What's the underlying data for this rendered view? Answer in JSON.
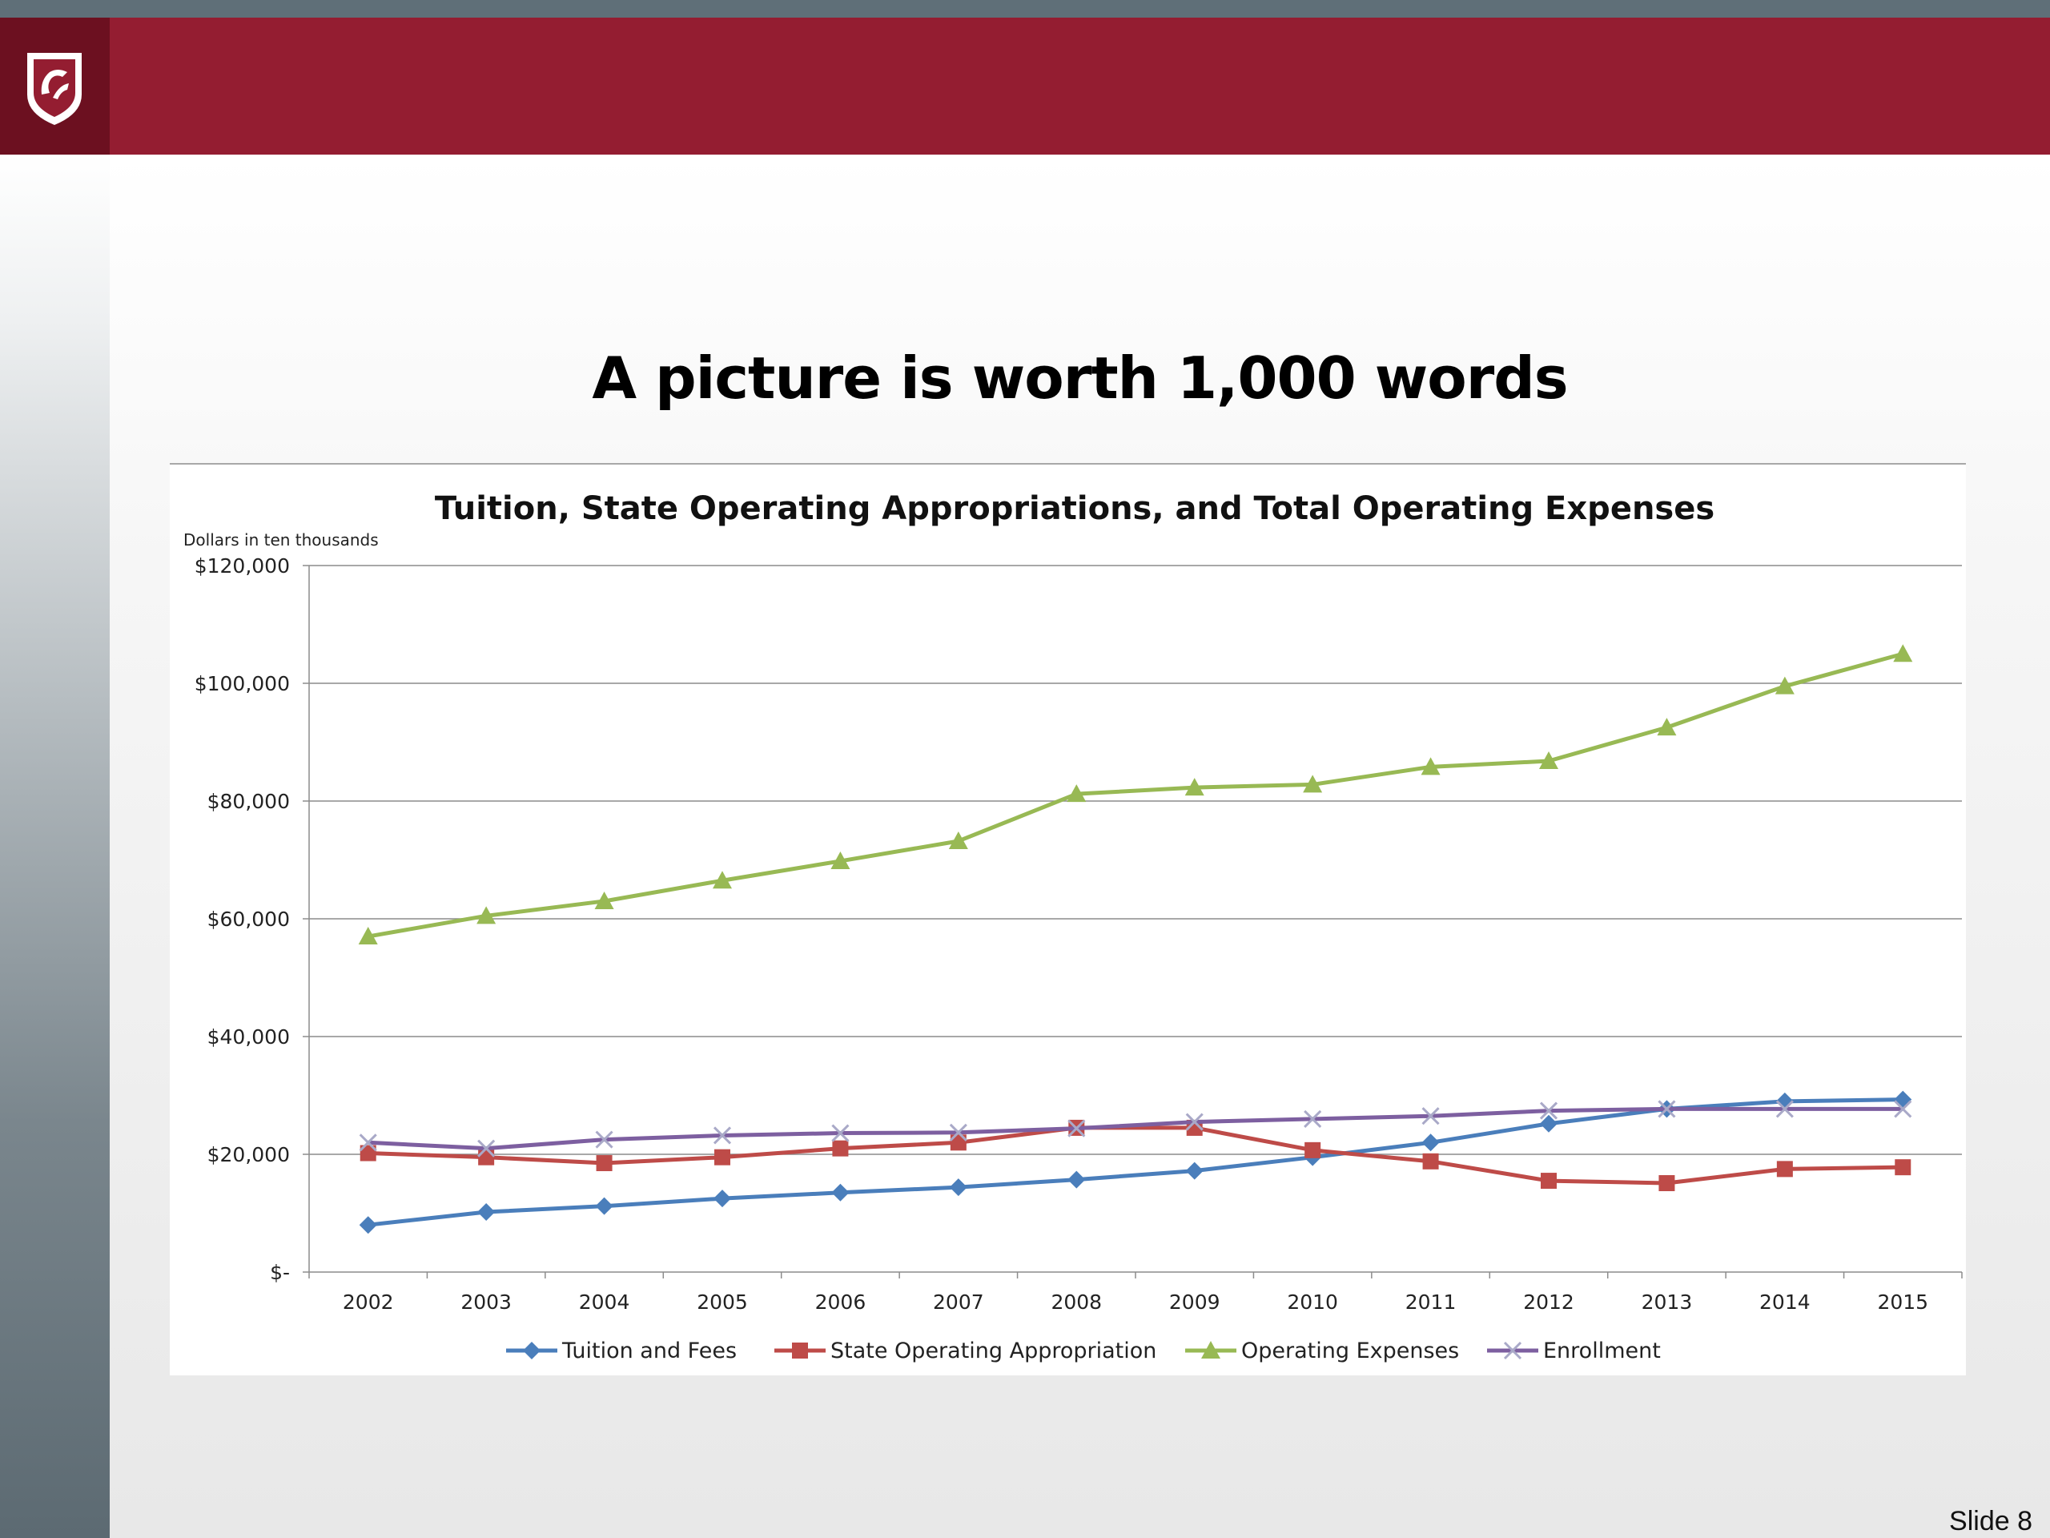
{
  "slide": {
    "title": "A picture is worth 1,000 words",
    "number": "Slide 8",
    "header_color": "#941d31",
    "logo": "wsu-cougar-shield-logo"
  },
  "chart_data": {
    "type": "line",
    "title": "Tuition, State Operating Appropriations, and Total Operating Expenses",
    "units_note": "Dollars in ten thousands",
    "xlabel": "",
    "ylabel": "",
    "categories": [
      "2002",
      "2003",
      "2004",
      "2005",
      "2006",
      "2007",
      "2008",
      "2009",
      "2010",
      "2011",
      "2012",
      "2013",
      "2014",
      "2015"
    ],
    "ylim": [
      0,
      120000
    ],
    "yticks": [
      {
        "value": 0,
        "label": "$-"
      },
      {
        "value": 20000,
        "label": "$20,000"
      },
      {
        "value": 40000,
        "label": "$40,000"
      },
      {
        "value": 60000,
        "label": "$60,000"
      },
      {
        "value": 80000,
        "label": "$80,000"
      },
      {
        "value": 100000,
        "label": "$100,000"
      },
      {
        "value": 120000,
        "label": "$120,000"
      }
    ],
    "grid": true,
    "legend_position": "bottom",
    "series": [
      {
        "name": "Tuition and Fees",
        "color": "#4a7ebb",
        "marker": "diamond",
        "values": [
          8000,
          10200,
          11200,
          12500,
          13500,
          14400,
          15700,
          17200,
          19500,
          22000,
          25200,
          27700,
          29000,
          29300
        ]
      },
      {
        "name": "State Operating Appropriation",
        "color": "#be4b48",
        "marker": "square",
        "values": [
          20200,
          19500,
          18500,
          19500,
          21000,
          22000,
          24500,
          24500,
          20700,
          18800,
          15500,
          15100,
          17500,
          17800
        ]
      },
      {
        "name": "Operating Expenses",
        "color": "#98b954",
        "marker": "triangle",
        "values": [
          57000,
          60500,
          63000,
          66500,
          69800,
          73200,
          81200,
          82300,
          82800,
          85800,
          86800,
          92500,
          99500,
          105000
        ]
      },
      {
        "name": "Enrollment",
        "color": "#7d5fa0",
        "marker": "x",
        "values": [
          22000,
          21000,
          22500,
          23200,
          23600,
          23700,
          24400,
          25500,
          26000,
          26500,
          27400,
          27700,
          27700,
          27700
        ]
      }
    ]
  }
}
